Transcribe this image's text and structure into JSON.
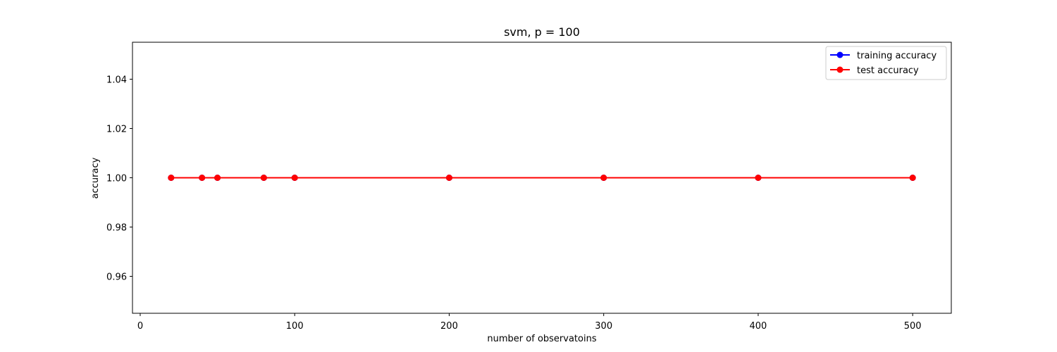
{
  "chart_data": {
    "type": "line",
    "title": "svm, p = 100",
    "xlabel": "number of observatoins",
    "ylabel": "accuracy",
    "xlim": [
      -5,
      525
    ],
    "ylim": [
      0.945,
      1.055
    ],
    "xticks": [
      0,
      100,
      200,
      300,
      400,
      500
    ],
    "xtick_labels": [
      "0",
      "100",
      "200",
      "300",
      "400",
      "500"
    ],
    "yticks": [
      0.96,
      0.98,
      1.0,
      1.02,
      1.04
    ],
    "ytick_labels": [
      "0.96",
      "0.98",
      "1.00",
      "1.02",
      "1.04"
    ],
    "grid": false,
    "legend_position": "top-right",
    "x": [
      20,
      40,
      50,
      80,
      100,
      200,
      300,
      400,
      500
    ],
    "series": [
      {
        "name": "training accuracy",
        "color": "#0000ff",
        "marker": "circle",
        "values": [
          1.0,
          1.0,
          1.0,
          1.0,
          1.0,
          1.0,
          1.0,
          1.0,
          1.0
        ]
      },
      {
        "name": "test accuracy",
        "color": "#ff0000",
        "marker": "circle",
        "values": [
          1.0,
          1.0,
          1.0,
          1.0,
          1.0,
          1.0,
          1.0,
          1.0,
          1.0
        ]
      }
    ]
  }
}
